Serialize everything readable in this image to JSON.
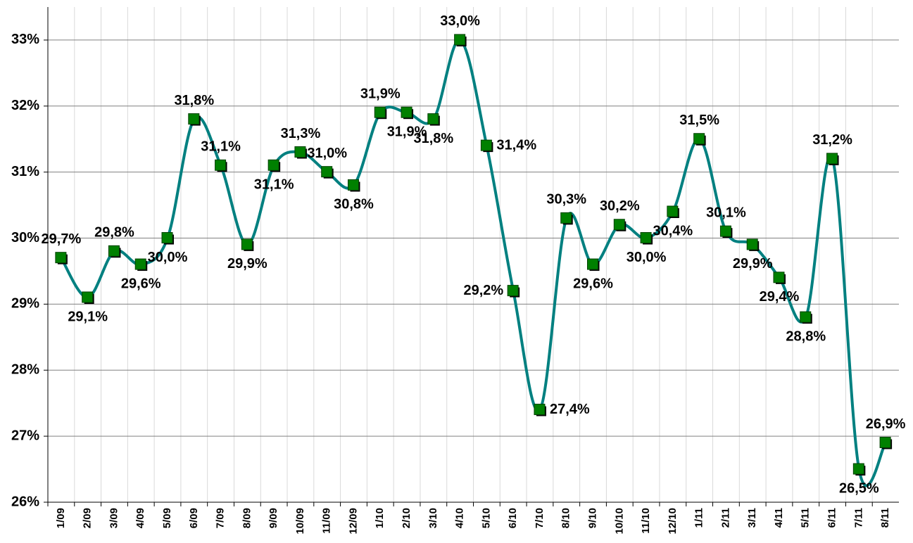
{
  "chart_data": {
    "type": "line",
    "categories": [
      "1/09",
      "2/09",
      "3/09",
      "4/09",
      "5/09",
      "6/09",
      "7/09",
      "8/09",
      "9/09",
      "10/09",
      "11/09",
      "12/09",
      "1/10",
      "2/10",
      "3/10",
      "4/10",
      "5/10",
      "6/10",
      "7/10",
      "8/10",
      "9/10",
      "10/10",
      "11/10",
      "12/10",
      "1/11",
      "2/11",
      "3/11",
      "4/11",
      "5/11",
      "6/11",
      "7/11",
      "8/11"
    ],
    "series": [
      {
        "color": "#008080",
        "marker_color": "#008000",
        "values": [
          29.7,
          29.1,
          29.8,
          29.6,
          30.0,
          31.8,
          31.1,
          29.9,
          31.1,
          31.3,
          31.0,
          30.8,
          31.9,
          31.9,
          31.8,
          33.0,
          31.4,
          29.2,
          27.4,
          30.3,
          29.6,
          30.2,
          30.0,
          30.4,
          31.5,
          30.1,
          29.9,
          29.4,
          28.8,
          31.2,
          26.5,
          26.9
        ],
        "value_labels": [
          "29,7%",
          "29,1%",
          "29,8%",
          "29,6%",
          "30,0%",
          "31,8%",
          "31,1%",
          "29,9%",
          "31,1%",
          "31,3%",
          "31,0%",
          "30,8%",
          "31,9%",
          "31,9%",
          "31,8%",
          "33,0%",
          "31,4%",
          "29,2%",
          "27,4%",
          "30,3%",
          "29,6%",
          "30,2%",
          "30,0%",
          "30,4%",
          "31,5%",
          "30,1%",
          "29,9%",
          "29,4%",
          "28,8%",
          "31,2%",
          "26,5%",
          "26,9%"
        ]
      }
    ],
    "ylim": [
      26,
      33.5
    ],
    "yticks": [
      {
        "value": 26,
        "label": "26%"
      },
      {
        "value": 27,
        "label": "27%"
      },
      {
        "value": 28,
        "label": "28%"
      },
      {
        "value": 29,
        "label": "29%"
      },
      {
        "value": 30,
        "label": "30%"
      },
      {
        "value": 31,
        "label": "31%"
      },
      {
        "value": 32,
        "label": "32%"
      },
      {
        "value": 33,
        "label": "33%"
      }
    ],
    "grid": true
  }
}
